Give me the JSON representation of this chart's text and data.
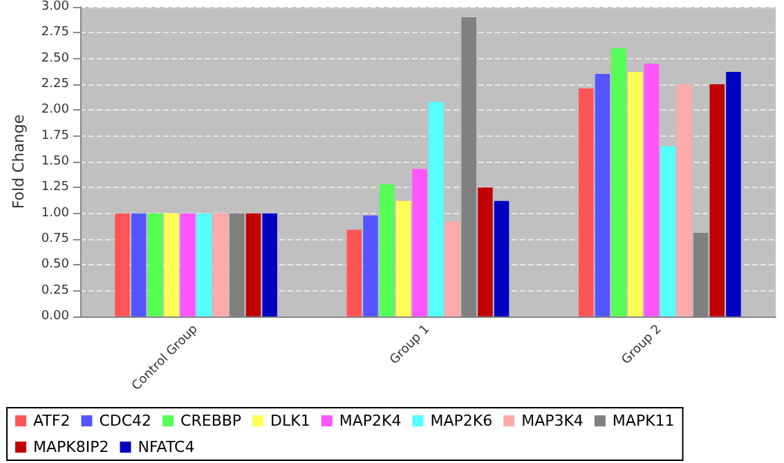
{
  "chart_data": {
    "type": "bar",
    "ylabel": "Fold Change",
    "categories": [
      "Control Group",
      "Group 1",
      "Group 2"
    ],
    "series": [
      {
        "name": "ATF2",
        "color": "#ff5555",
        "values": [
          1.0,
          0.84,
          2.21
        ]
      },
      {
        "name": "CDC42",
        "color": "#5555ff",
        "values": [
          1.0,
          0.98,
          2.35
        ]
      },
      {
        "name": "CREBBP",
        "color": "#55ff55",
        "values": [
          1.0,
          1.28,
          2.6
        ]
      },
      {
        "name": "DLK1",
        "color": "#ffff55",
        "values": [
          1.0,
          1.12,
          2.37
        ]
      },
      {
        "name": "MAP2K4",
        "color": "#ff55ff",
        "values": [
          1.0,
          1.43,
          2.45
        ]
      },
      {
        "name": "MAP2K6",
        "color": "#55ffff",
        "values": [
          1.0,
          2.08,
          1.65
        ]
      },
      {
        "name": "MAP3K4",
        "color": "#ffaaaa",
        "values": [
          1.0,
          0.92,
          2.25
        ]
      },
      {
        "name": "MAPK11",
        "color": "#808080",
        "values": [
          1.0,
          2.9,
          0.81
        ]
      },
      {
        "name": "MAPK8IP2",
        "color": "#c00000",
        "values": [
          1.0,
          1.25,
          2.25
        ]
      },
      {
        "name": "NFATC4",
        "color": "#0000c0",
        "values": [
          1.0,
          1.12,
          2.37
        ]
      }
    ],
    "ylim": [
      0,
      3
    ],
    "yticks": [
      {
        "value": 0,
        "label": "0.00"
      },
      {
        "value": 0.25,
        "label": "0.25"
      },
      {
        "value": 0.5,
        "label": "0.50"
      },
      {
        "value": 0.75,
        "label": "0.75"
      },
      {
        "value": 1,
        "label": "1.00"
      },
      {
        "value": 1.25,
        "label": "1.25"
      },
      {
        "value": 1.5,
        "label": "1.50"
      },
      {
        "value": 1.75,
        "label": "1.75"
      },
      {
        "value": 2,
        "label": "2.00"
      },
      {
        "value": 2.25,
        "label": "2.25"
      },
      {
        "value": 2.5,
        "label": "2.50"
      },
      {
        "value": 2.75,
        "label": "2.75"
      },
      {
        "value": 3,
        "label": "3.00"
      }
    ],
    "grid": "y",
    "legend": "bottom"
  }
}
